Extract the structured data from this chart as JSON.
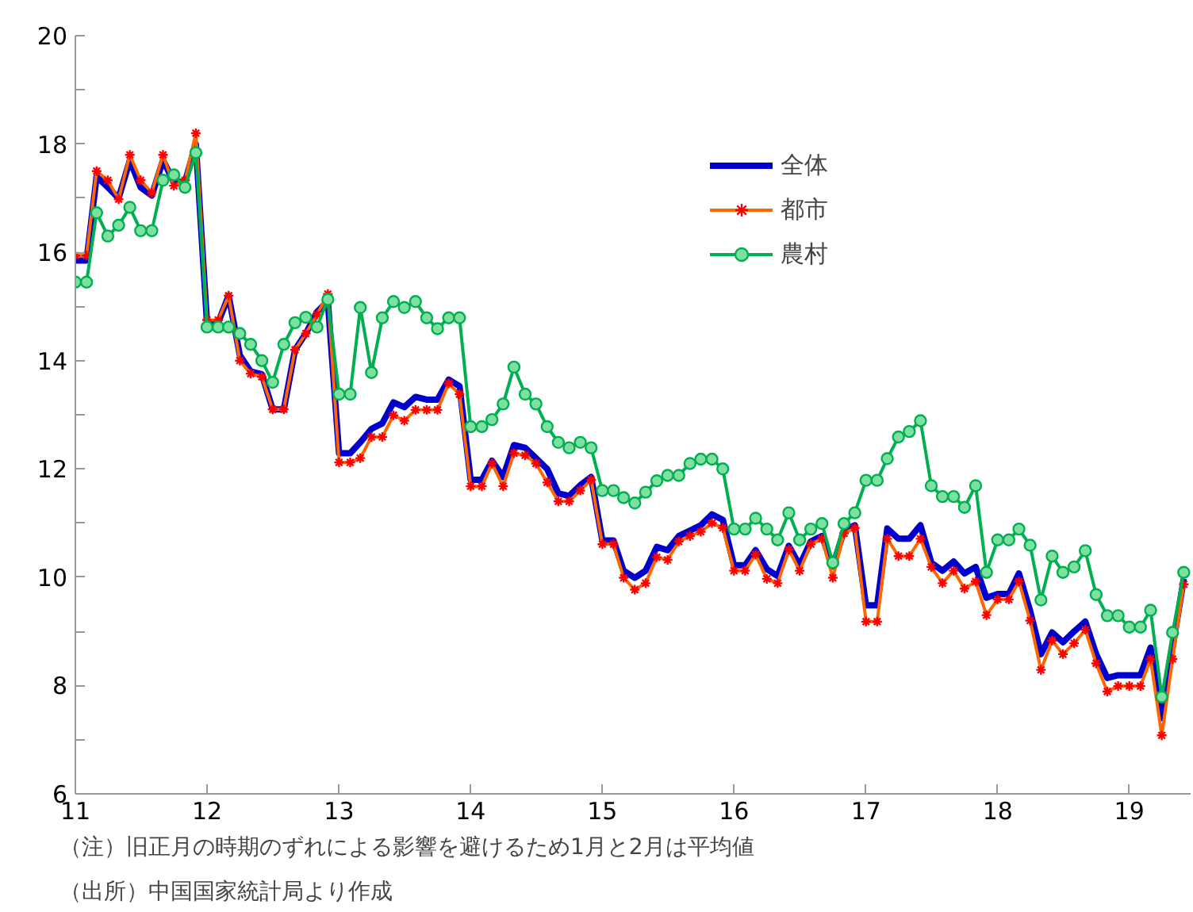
{
  "chart_data": {
    "type": "line",
    "x": [
      "2011-01",
      "2011-02",
      "2011-03",
      "2011-04",
      "2011-05",
      "2011-06",
      "2011-07",
      "2011-08",
      "2011-09",
      "2011-10",
      "2011-11",
      "2011-12",
      "2012-01",
      "2012-02",
      "2012-03",
      "2012-04",
      "2012-05",
      "2012-06",
      "2012-07",
      "2012-08",
      "2012-09",
      "2012-10",
      "2012-11",
      "2012-12",
      "2013-01",
      "2013-02",
      "2013-03",
      "2013-04",
      "2013-05",
      "2013-06",
      "2013-07",
      "2013-08",
      "2013-09",
      "2013-10",
      "2013-11",
      "2013-12",
      "2014-01",
      "2014-02",
      "2014-03",
      "2014-04",
      "2014-05",
      "2014-06",
      "2014-07",
      "2014-08",
      "2014-09",
      "2014-10",
      "2014-11",
      "2014-12",
      "2015-01",
      "2015-02",
      "2015-03",
      "2015-04",
      "2015-05",
      "2015-06",
      "2015-07",
      "2015-08",
      "2015-09",
      "2015-10",
      "2015-11",
      "2015-12",
      "2016-01",
      "2016-02",
      "2016-03",
      "2016-04",
      "2016-05",
      "2016-06",
      "2016-07",
      "2016-08",
      "2016-09",
      "2016-10",
      "2016-11",
      "2016-12",
      "2017-01",
      "2017-02",
      "2017-03",
      "2017-04",
      "2017-05",
      "2017-06",
      "2017-07",
      "2017-08",
      "2017-09",
      "2017-10",
      "2017-11",
      "2017-12",
      "2018-01",
      "2018-02",
      "2018-03",
      "2018-04",
      "2018-05",
      "2018-06",
      "2018-07",
      "2018-08",
      "2018-09",
      "2018-10",
      "2018-11",
      "2018-12",
      "2019-01",
      "2019-02",
      "2019-03",
      "2019-04",
      "2019-05",
      "2019-06"
    ],
    "xlim": [
      "2011-01-01",
      "2019-06-20"
    ],
    "xticks": [
      {
        "value": "2011-01-01",
        "label": "11"
      },
      {
        "value": "2012-01-01",
        "label": "12"
      },
      {
        "value": "2013-01-01",
        "label": "13"
      },
      {
        "value": "2014-01-01",
        "label": "14"
      },
      {
        "value": "2015-01-01",
        "label": "15"
      },
      {
        "value": "2016-01-01",
        "label": "16"
      },
      {
        "value": "2017-01-01",
        "label": "17"
      },
      {
        "value": "2018-01-01",
        "label": "18"
      },
      {
        "value": "2019-01-01",
        "label": "19"
      }
    ],
    "ylim": [
      6,
      20
    ],
    "yticks": [
      6,
      {
        "value": 7,
        "label": null
      },
      8,
      {
        "value": 9,
        "label": null
      },
      10,
      {
        "value": 11,
        "label": null
      },
      12,
      {
        "value": 13,
        "label": null
      },
      14,
      {
        "value": 15,
        "label": null
      },
      16,
      {
        "value": 17,
        "label": null
      },
      18,
      {
        "value": 19,
        "label": null
      },
      20
    ],
    "grid": false,
    "legend": "top right",
    "series": [
      {
        "name": "全体",
        "color": "#0000cc",
        "marker": "none",
        "values": [
          15.85,
          15.85,
          17.4,
          17.2,
          17.0,
          17.7,
          17.2,
          17.05,
          17.7,
          17.3,
          17.3,
          18.0,
          14.7,
          14.7,
          15.2,
          14.1,
          13.8,
          13.75,
          13.1,
          13.1,
          14.2,
          14.5,
          14.9,
          15.1,
          12.29,
          12.29,
          12.49,
          12.74,
          12.84,
          13.23,
          13.14,
          13.33,
          13.28,
          13.28,
          13.65,
          13.53,
          11.8,
          11.8,
          12.15,
          11.85,
          12.44,
          12.39,
          12.2,
          12.0,
          11.55,
          11.5,
          11.7,
          11.85,
          10.68,
          10.68,
          10.12,
          9.99,
          10.12,
          10.56,
          10.5,
          10.76,
          10.86,
          10.96,
          11.16,
          11.06,
          10.22,
          10.22,
          10.5,
          10.15,
          10.02,
          10.58,
          10.22,
          10.66,
          10.76,
          10.2,
          10.86,
          10.96,
          9.48,
          9.48,
          10.9,
          10.71,
          10.71,
          10.96,
          10.27,
          10.12,
          10.29,
          10.07,
          10.19,
          9.62,
          9.69,
          9.69,
          10.07,
          9.38,
          8.58,
          8.98,
          8.8,
          9.0,
          9.18,
          8.58,
          8.14,
          8.19,
          8.19,
          8.19,
          8.7,
          7.4,
          8.7,
          9.97
        ]
      },
      {
        "name": "都市",
        "color": "#ff6600",
        "marker": "cross",
        "values": [
          15.94,
          15.94,
          17.5,
          17.33,
          16.98,
          17.8,
          17.33,
          17.1,
          17.8,
          17.23,
          17.33,
          18.2,
          14.75,
          14.75,
          15.2,
          14.0,
          13.76,
          13.7,
          13.1,
          13.1,
          14.2,
          14.5,
          14.85,
          15.23,
          12.12,
          12.12,
          12.2,
          12.59,
          12.59,
          12.99,
          12.89,
          13.09,
          13.09,
          13.09,
          13.58,
          13.38,
          11.68,
          11.68,
          12.1,
          11.68,
          12.29,
          12.25,
          12.1,
          11.75,
          11.4,
          11.4,
          11.6,
          11.8,
          10.61,
          10.61,
          9.99,
          9.77,
          9.89,
          10.37,
          10.32,
          10.66,
          10.76,
          10.84,
          11.0,
          10.91,
          10.12,
          10.12,
          10.42,
          9.97,
          9.89,
          10.51,
          10.12,
          10.61,
          10.71,
          9.99,
          10.81,
          10.91,
          9.18,
          9.18,
          10.71,
          10.39,
          10.39,
          10.71,
          10.19,
          9.89,
          10.12,
          9.79,
          9.92,
          9.3,
          9.59,
          9.59,
          9.92,
          9.2,
          8.29,
          8.83,
          8.58,
          8.78,
          9.03,
          8.41,
          7.89,
          7.99,
          7.99,
          7.99,
          8.49,
          7.08,
          8.49,
          9.87
        ]
      },
      {
        "name": "農村",
        "color": "#00b050",
        "marker": "circle",
        "values": [
          15.45,
          15.45,
          16.73,
          16.3,
          16.5,
          16.83,
          16.4,
          16.4,
          17.33,
          17.43,
          17.2,
          17.84,
          14.62,
          14.62,
          14.62,
          14.5,
          14.3,
          14.0,
          13.6,
          14.3,
          14.7,
          14.8,
          14.62,
          15.13,
          13.38,
          13.38,
          14.98,
          13.78,
          14.79,
          15.09,
          14.98,
          15.09,
          14.79,
          14.59,
          14.79,
          14.79,
          12.78,
          12.78,
          12.91,
          13.2,
          13.88,
          13.38,
          13.2,
          12.78,
          12.49,
          12.39,
          12.49,
          12.39,
          11.6,
          11.6,
          11.47,
          11.37,
          11.57,
          11.78,
          11.88,
          11.88,
          12.1,
          12.18,
          12.18,
          12.0,
          10.89,
          10.89,
          11.09,
          10.89,
          10.69,
          11.19,
          10.69,
          10.89,
          10.99,
          10.27,
          10.99,
          11.19,
          11.79,
          11.79,
          12.19,
          12.59,
          12.69,
          12.89,
          11.69,
          11.49,
          11.49,
          11.29,
          11.69,
          10.09,
          10.69,
          10.69,
          10.89,
          10.59,
          9.58,
          10.39,
          10.09,
          10.19,
          10.49,
          9.68,
          9.29,
          9.29,
          9.08,
          9.08,
          9.39,
          7.79,
          8.98,
          10.09
        ]
      }
    ],
    "annotations": [
      "（注）旧正月の時期のずれによる影響を避けるため1月と2月は平均値",
      "（出所）中国国家統計局より作成"
    ]
  }
}
